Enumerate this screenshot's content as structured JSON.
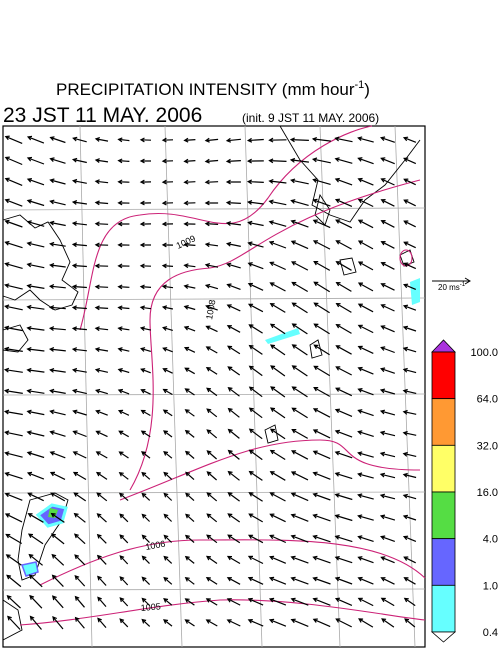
{
  "header": {
    "title": "PRECIPITATION INTENSITY (mm hour",
    "title_superscript": "-1",
    "title_end": ")",
    "valid_time": "23 JST 11 MAY. 2006",
    "init_time": "(init. 9 JST 11 MAY. 2006)"
  },
  "wind_scale": {
    "label": "20 ms",
    "label_superscript": "-1"
  },
  "isobars": [
    {
      "label": "1009"
    },
    {
      "label": "1008"
    },
    {
      "label": "1006"
    },
    {
      "label": "1005"
    }
  ],
  "colorbar": {
    "labels": [
      "100.0",
      "64.0",
      "32.0",
      "16.0",
      "4.0",
      "1.0",
      "0.4"
    ],
    "colors": [
      "#ff0000",
      "#ff9933",
      "#ffff66",
      "#55dd44",
      "#6666ff",
      "#66ffff"
    ],
    "over_color": "#aa33dd",
    "under_color": "#ffffff"
  }
}
